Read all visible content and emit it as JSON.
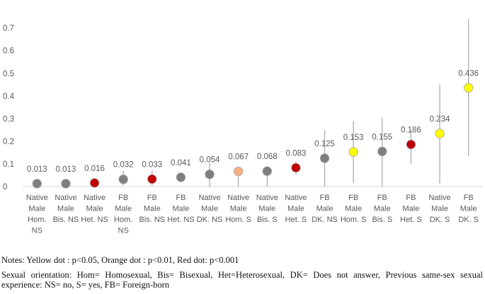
{
  "chart_data": {
    "type": "scatter",
    "ylim": [
      0,
      0.8
    ],
    "yticks": [
      "0",
      "0.1",
      "0.2",
      "0.3",
      "0.4",
      "0.5",
      "0.6",
      "0.7"
    ],
    "grid": false,
    "legend": "none",
    "points": [
      {
        "category": [
          "Native",
          "Male",
          "Hom.",
          "NS"
        ],
        "value": 0.013,
        "label": "0.013",
        "ci": null,
        "color": "#7f7f7f"
      },
      {
        "category": [
          "Native",
          "Male",
          "Bis. NS"
        ],
        "value": 0.013,
        "label": "0.013",
        "ci": null,
        "color": "#7f7f7f"
      },
      {
        "category": [
          "Native",
          "Male",
          "Het. NS"
        ],
        "value": 0.016,
        "label": "0.016",
        "ci": null,
        "color": "#c00000"
      },
      {
        "category": [
          "FB",
          "Male",
          "Hom.",
          "NS"
        ],
        "value": 0.032,
        "label": "0.032",
        "ci": [
          0.005,
          0.07
        ],
        "color": "#7f7f7f"
      },
      {
        "category": [
          "FB",
          "Male",
          "Bis. NS"
        ],
        "value": 0.033,
        "label": "0.033",
        "ci": [
          0.005,
          0.07
        ],
        "color": "#c00000"
      },
      {
        "category": [
          "FB",
          "Male",
          "Het. NS"
        ],
        "value": 0.041,
        "label": "0.041",
        "ci": null,
        "color": "#7f7f7f"
      },
      {
        "category": [
          "Native",
          "Male",
          "DK. NS"
        ],
        "value": 0.054,
        "label": "0.054",
        "ci": [
          0.0,
          0.105
        ],
        "color": "#7f7f7f"
      },
      {
        "category": [
          "Native",
          "Male",
          "Hom. S"
        ],
        "value": 0.067,
        "label": "0.067",
        "ci": [
          0.0,
          0.085
        ],
        "color": "#f4b183"
      },
      {
        "category": [
          "Native",
          "Male",
          "Bis. S"
        ],
        "value": 0.068,
        "label": "0.068",
        "ci": [
          0.0,
          0.085
        ],
        "color": "#7f7f7f"
      },
      {
        "category": [
          "Native",
          "Male",
          "Het. S"
        ],
        "value": 0.083,
        "label": "0.083",
        "ci": [
          0.055,
          0.11
        ],
        "color": "#c00000"
      },
      {
        "category": [
          "FB",
          "Male",
          "DK. NS"
        ],
        "value": 0.125,
        "label": "0.125",
        "ci": [
          0.0,
          0.25
        ],
        "color": "#7f7f7f"
      },
      {
        "category": [
          "FB",
          "Male",
          "Hom. S"
        ],
        "value": 0.153,
        "label": "0.153",
        "ci": [
          0.015,
          0.29
        ],
        "color": "#ffff00"
      },
      {
        "category": [
          "FB",
          "Male",
          "Bis. S"
        ],
        "value": 0.155,
        "label": "0.155",
        "ci": [
          0.0,
          0.305
        ],
        "color": "#7f7f7f"
      },
      {
        "category": [
          "FB",
          "Male",
          "Het. S"
        ],
        "value": 0.186,
        "label": "0.186",
        "ci": [
          0.1,
          0.25
        ],
        "color": "#c00000"
      },
      {
        "category": [
          "Native",
          "Male",
          "DK. S"
        ],
        "value": 0.234,
        "label": "0.234",
        "ci": [
          0.015,
          0.45
        ],
        "color": "#ffff00"
      },
      {
        "category": [
          "FB",
          "Male",
          "DK. S"
        ],
        "value": 0.436,
        "label": "0.436",
        "ci": [
          0.135,
          0.74
        ],
        "color": "#ffff00"
      }
    ],
    "colors": {
      "axis": "#d9d9d9",
      "errorbar": "#a6a6a6",
      "text": "#595959",
      "marker_edge": "#a6a6a6"
    }
  },
  "notes": {
    "line1": "Notes: Yellow dot : p<0.05, Orange dot : p<0.01, Red dot: p<0.001",
    "line2": "Sexual orientation: Hom= Homosexual, Bis= Bisexual, Het=Heterosexual, DK= Does not answer, Previous same-sex sexual experience: NS= no, S= yes,  FB= Foreign-born"
  }
}
